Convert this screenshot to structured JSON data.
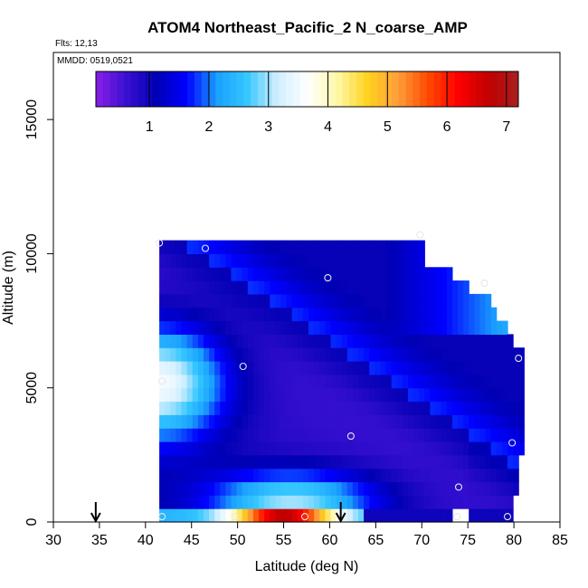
{
  "chart_data": {
    "type": "heatmap",
    "title": "ATOM4 Northeast_Pacific_2 N_coarse_AMP",
    "flights_label": "Flts: 12,13",
    "dates_label": "MMDD: 0519,0521",
    "xlabel": "Latitude (deg N)",
    "ylabel": "Altitude (m)",
    "xlim": [
      30,
      85
    ],
    "ylim": [
      0,
      17500
    ],
    "x_ticks": [
      30,
      35,
      40,
      45,
      50,
      55,
      60,
      65,
      70,
      75,
      80,
      85
    ],
    "y_ticks": [
      0,
      5000,
      10000,
      15000
    ],
    "colorbar": {
      "range": [
        0.1,
        7.2
      ],
      "ticks": [
        1,
        2,
        3,
        4,
        5,
        6,
        7
      ],
      "colors": [
        "#8a1fe6",
        "#3a10d2",
        "#0000b4",
        "#0000ff",
        "#1aa0ff",
        "#34c6ff",
        "#cfeeff",
        "#ffffff",
        "#fff8a8",
        "#ffd21e",
        "#ff9f3a",
        "#ff4a00",
        "#ff0000",
        "#c10000",
        "#a82020"
      ]
    },
    "field": {
      "lat_range": [
        41.5,
        80.5
      ],
      "alt_step": 500,
      "lat_step": 0.6,
      "top_altitudes": [
        {
          "lat": 41.5,
          "alt": 10500
        },
        {
          "lat": 69.8,
          "alt": 10500
        },
        {
          "lat": 70.2,
          "alt": 10000
        },
        {
          "lat": 73,
          "alt": 9500
        },
        {
          "lat": 75,
          "alt": 9000
        },
        {
          "lat": 77,
          "alt": 8500
        },
        {
          "lat": 79,
          "alt": 7500
        },
        {
          "lat": 80.5,
          "alt": 6500
        }
      ],
      "bottom_altitudes": [
        {
          "lat": 41.5,
          "alt": 0
        },
        {
          "lat": 73,
          "alt": 0
        },
        {
          "lat": 74,
          "alt": 500
        },
        {
          "lat": 75,
          "alt": 0
        },
        {
          "lat": 79.5,
          "alt": 0
        },
        {
          "lat": 80.5,
          "alt": 2500
        }
      ]
    },
    "sample_points": [
      {
        "lat": 41.5,
        "alt": 10400
      },
      {
        "lat": 46.5,
        "alt": 10200
      },
      {
        "lat": 59.8,
        "alt": 9100
      },
      {
        "lat": 69.8,
        "alt": 10700
      },
      {
        "lat": 76.8,
        "alt": 8900
      },
      {
        "lat": 80.5,
        "alt": 6100
      },
      {
        "lat": 50.6,
        "alt": 5800
      },
      {
        "lat": 62.3,
        "alt": 3200
      },
      {
        "lat": 79.8,
        "alt": 2950
      },
      {
        "lat": 74,
        "alt": 1300
      },
      {
        "lat": 41.8,
        "alt": 200
      },
      {
        "lat": 49.7,
        "alt": 200
      },
      {
        "lat": 57.3,
        "alt": 200
      },
      {
        "lat": 73.8,
        "alt": 200
      },
      {
        "lat": 79.3,
        "alt": 200
      },
      {
        "lat": 41.8,
        "alt": 5250
      }
    ],
    "arrows": [
      34.6,
      61.2
    ]
  }
}
